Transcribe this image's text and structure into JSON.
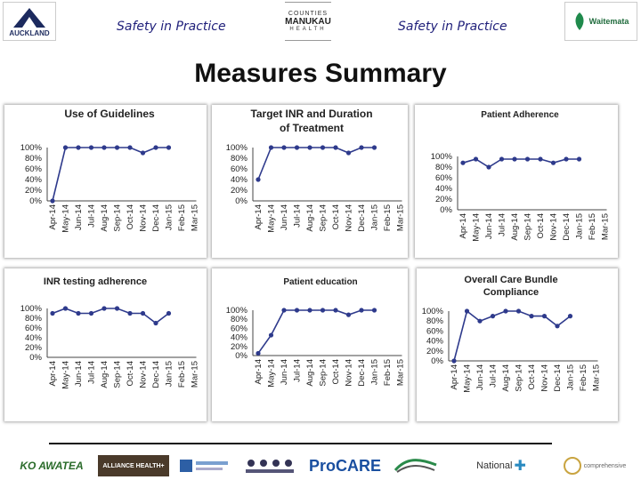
{
  "header": {
    "logo_left": "AUCKLAND",
    "left_text": "Safety in Practice",
    "center_logo_line1": "COUNTIES",
    "center_logo_line2": "MANUKAU",
    "center_logo_line3": "HEALTH",
    "right_text": "Safety in Practice",
    "logo_right": "Waitemata"
  },
  "title": "Measures Summary",
  "colors": {
    "line": "#2e3a8c",
    "marker": "#2e3a8c",
    "title_text": "#1f1f7a"
  },
  "months": [
    "Apr-14",
    "May-14",
    "Jun-14",
    "Jul-14",
    "Aug-14",
    "Sep-14",
    "Oct-14",
    "Nov-14",
    "Dec-14",
    "Jan-15",
    "Feb-15",
    "Mar-15"
  ],
  "y_ticks": [
    "0%",
    "20%",
    "40%",
    "60%",
    "80%",
    "100%"
  ],
  "chart_data": [
    {
      "type": "line",
      "title": "Use of Guidelines",
      "ylim": [
        0,
        100
      ],
      "categories": [
        "Apr-14",
        "May-14",
        "Jun-14",
        "Jul-14",
        "Aug-14",
        "Sep-14",
        "Oct-14",
        "Nov-14",
        "Dec-14",
        "Jan-15",
        "Feb-15",
        "Mar-15"
      ],
      "values": [
        0,
        100,
        100,
        100,
        100,
        100,
        100,
        90,
        100,
        100,
        null,
        null
      ]
    },
    {
      "type": "line",
      "title": "Target INR and Duration of Treatment",
      "ylim": [
        0,
        100
      ],
      "categories": [
        "Apr-14",
        "May-14",
        "Jun-14",
        "Jul-14",
        "Aug-14",
        "Sep-14",
        "Oct-14",
        "Nov-14",
        "Dec-14",
        "Jan-15",
        "Feb-15",
        "Mar-15"
      ],
      "values": [
        40,
        100,
        100,
        100,
        100,
        100,
        100,
        90,
        100,
        100,
        null,
        null
      ]
    },
    {
      "type": "line",
      "title": "Patient Adherence",
      "ylim": [
        0,
        100
      ],
      "categories": [
        "Apr-14",
        "May-14",
        "Jun-14",
        "Jul-14",
        "Aug-14",
        "Sep-14",
        "Oct-14",
        "Nov-14",
        "Dec-14",
        "Jan-15",
        "Feb-15",
        "Mar-15"
      ],
      "values": [
        88,
        95,
        80,
        95,
        95,
        95,
        95,
        88,
        95,
        95,
        null,
        null
      ]
    },
    {
      "type": "line",
      "title": "INR testing adherence",
      "ylim": [
        0,
        100
      ],
      "categories": [
        "Apr-14",
        "May-14",
        "Jun-14",
        "Jul-14",
        "Aug-14",
        "Sep-14",
        "Oct-14",
        "Nov-14",
        "Dec-14",
        "Jan-15",
        "Feb-15",
        "Mar-15"
      ],
      "values": [
        90,
        100,
        90,
        90,
        100,
        100,
        90,
        90,
        70,
        90,
        null,
        null
      ]
    },
    {
      "type": "line",
      "title": "Patient education",
      "ylim": [
        0,
        100
      ],
      "categories": [
        "Apr-14",
        "May-14",
        "Jun-14",
        "Jul-14",
        "Aug-14",
        "Sep-14",
        "Oct-14",
        "Nov-14",
        "Dec-14",
        "Jan-15",
        "Feb-15",
        "Mar-15"
      ],
      "values": [
        5,
        45,
        100,
        100,
        100,
        100,
        100,
        90,
        100,
        100,
        null,
        null
      ]
    },
    {
      "type": "line",
      "title": "Overall Care Bundle Compliance",
      "ylim": [
        0,
        100
      ],
      "categories": [
        "Apr-14",
        "May-14",
        "Jun-14",
        "Jul-14",
        "Aug-14",
        "Sep-14",
        "Oct-14",
        "Nov-14",
        "Dec-14",
        "Jan-15",
        "Feb-15",
        "Mar-15"
      ],
      "values": [
        0,
        100,
        80,
        90,
        100,
        100,
        90,
        90,
        70,
        90,
        null,
        null
      ]
    }
  ],
  "footer_logos": [
    "KO AWATEA",
    "ALLIANCE HEALTH+",
    "",
    "",
    "ProCARE",
    "",
    "National",
    "comprehensive"
  ]
}
